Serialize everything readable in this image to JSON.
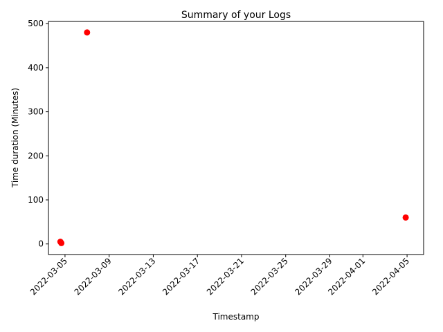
{
  "chart_data": {
    "type": "scatter",
    "title": "Summary of your Logs",
    "xlabel": "Timestamp",
    "ylabel": "Time duration (Minutes)",
    "x_type": "date",
    "x_ticks": [
      "2022-03-05",
      "2022-03-09",
      "2022-03-13",
      "2022-03-17",
      "2022-03-21",
      "2022-03-25",
      "2022-03-29",
      "2022-04-01",
      "2022-04-05"
    ],
    "y_ticks": [
      0,
      100,
      200,
      300,
      400,
      500
    ],
    "xlim": [
      "2022-03-03T12:00",
      "2022-04-06T12:00"
    ],
    "ylim": [
      -24,
      505
    ],
    "grid": false,
    "legend": "none",
    "marker_color": "#ff0000",
    "points": [
      {
        "x": "2022-03-04T14:00",
        "y": 5
      },
      {
        "x": "2022-03-04T16:00",
        "y": 2
      },
      {
        "x": "2022-03-07T00:00",
        "y": 480
      },
      {
        "x": "2022-04-04T21:00",
        "y": 60
      }
    ]
  }
}
